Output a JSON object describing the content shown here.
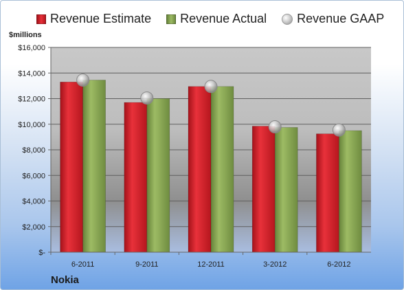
{
  "chart_data": {
    "type": "bar",
    "categories": [
      "6-2011",
      "9-2011",
      "12-2011",
      "3-2012",
      "6-2012"
    ],
    "series": [
      {
        "name": "Revenue Estimate",
        "values": [
          13300,
          11700,
          12950,
          9850,
          9250
        ],
        "color": "#d8202a"
      },
      {
        "name": "Revenue Actual",
        "values": [
          13450,
          12000,
          12950,
          9750,
          9500
        ],
        "color": "#8ca954"
      },
      {
        "name": "Revenue GAAP",
        "values": [
          13450,
          12050,
          12950,
          9800,
          9550
        ],
        "color": "#b8b8b8",
        "style": "marker"
      }
    ],
    "yticks": [
      "$-",
      "$2,000",
      "$4,000",
      "$6,000",
      "$8,000",
      "$10,000",
      "$12,000",
      "$14,000",
      "$16,000"
    ],
    "ylim": [
      0,
      16000
    ],
    "ylabel": "$millions",
    "title": "Nokia",
    "grid": true,
    "legend_position": "top"
  }
}
